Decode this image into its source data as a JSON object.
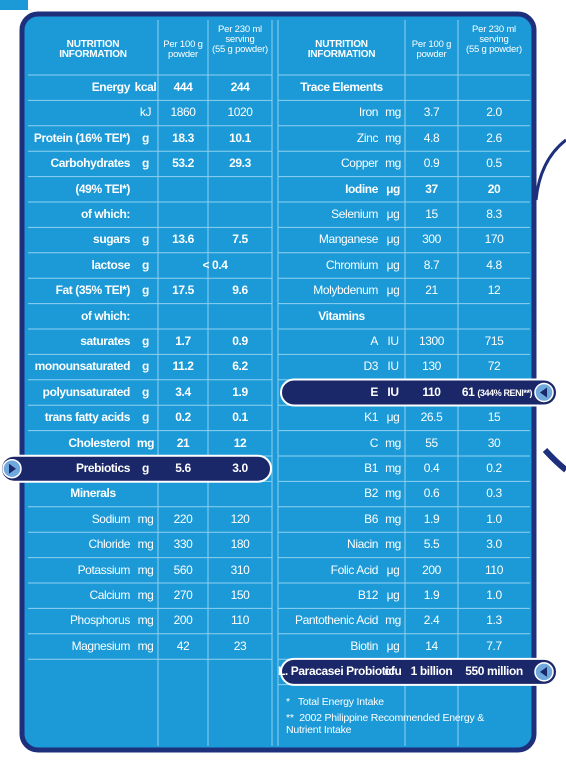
{
  "left": {
    "header": {
      "label": "NUTRITION\nINFORMATION",
      "per100": "Per 100 g\npowder",
      "per230": "Per 230 ml\nserving\n(55 g powder)"
    },
    "rows": [
      {
        "label": "Energy",
        "unit": "kcal",
        "per100": "444",
        "per230": "244",
        "bold": true
      },
      {
        "unit": "kJ",
        "per100": "1860",
        "per230": "1020"
      },
      {
        "label": "Protein (16% TEI*)",
        "unit": "g",
        "per100": "18.3",
        "per230": "10.1",
        "bold": true
      },
      {
        "label": "Carbohydrates",
        "unit": "g",
        "per100": "53.2",
        "per230": "29.3",
        "bold": true
      },
      {
        "label": "(49% TEI*)",
        "bold": true
      },
      {
        "label": "of which:",
        "bold": true
      },
      {
        "label": "sugars",
        "unit": "g",
        "per100": "13.6",
        "per230": "7.5",
        "bold": true
      },
      {
        "label": "lactose",
        "unit": "g",
        "both": "< 0.4",
        "bold": true
      },
      {
        "label": "Fat (35% TEI*)",
        "unit": "g",
        "per100": "17.5",
        "per230": "9.6",
        "bold": true
      },
      {
        "label": "of which:",
        "bold": true
      },
      {
        "label": "saturates",
        "unit": "g",
        "per100": "1.7",
        "per230": "0.9",
        "bold": true
      },
      {
        "label": "monounsaturated",
        "unit": "g",
        "per100": "11.2",
        "per230": "6.2",
        "bold": true
      },
      {
        "label": "polyunsaturated",
        "unit": "g",
        "per100": "3.4",
        "per230": "1.9",
        "bold": true
      },
      {
        "label": "trans fatty acids",
        "unit": "g",
        "per100": "0.2",
        "per230": "0.1",
        "bold": true
      },
      {
        "label": "Cholesterol",
        "unit": "mg",
        "per100": "21",
        "per230": "12",
        "bold": true
      },
      {
        "label": "Prebiotics",
        "unit": "g",
        "per100": "5.6",
        "per230": "3.0",
        "bold": true,
        "highlight": true
      },
      {
        "label": "Minerals",
        "bold": true
      },
      {
        "label": "Sodium",
        "unit": "mg",
        "per100": "220",
        "per230": "120"
      },
      {
        "label": "Chloride",
        "unit": "mg",
        "per100": "330",
        "per230": "180"
      },
      {
        "label": "Potassium",
        "unit": "mg",
        "per100": "560",
        "per230": "310"
      },
      {
        "label": "Calcium",
        "unit": "mg",
        "per100": "270",
        "per230": "150"
      },
      {
        "label": "Phosphorus",
        "unit": "mg",
        "per100": "200",
        "per230": "110"
      },
      {
        "label": "Magnesium",
        "unit": "mg",
        "per100": "42",
        "per230": "23"
      }
    ]
  },
  "right": {
    "header": {
      "label": "NUTRITION\nINFORMATION",
      "per100": "Per 100 g\npowder",
      "per230": "Per 230 ml\nserving\n(55 g powder)"
    },
    "rows": [
      {
        "label": "Trace Elements",
        "bold": true
      },
      {
        "label": "Iron",
        "unit": "mg",
        "per100": "3.7",
        "per230": "2.0"
      },
      {
        "label": "Zinc",
        "unit": "mg",
        "per100": "4.8",
        "per230": "2.6"
      },
      {
        "label": "Copper",
        "unit": "mg",
        "per100": "0.9",
        "per230": "0.5"
      },
      {
        "label": "Iodine",
        "unit": "μg",
        "per100": "37",
        "per230": "20",
        "bold": true
      },
      {
        "label": "Selenium",
        "unit": "μg",
        "per100": "15",
        "per230": "8.3"
      },
      {
        "label": "Manganese",
        "unit": "μg",
        "per100": "300",
        "per230": "170"
      },
      {
        "label": "Chromium",
        "unit": "μg",
        "per100": "8.7",
        "per230": "4.8"
      },
      {
        "label": "Molybdenum",
        "unit": "μg",
        "per100": "21",
        "per230": "12"
      },
      {
        "label": "Vitamins",
        "bold": true
      },
      {
        "label": "A",
        "unit": "IU",
        "per100": "1300",
        "per230": "715"
      },
      {
        "label": "D3",
        "unit": "IU",
        "per100": "130",
        "per230": "72"
      },
      {
        "label": "E",
        "unit": "IU",
        "per100": "110",
        "per230": "61",
        "per230_note": "(344% RENI**)",
        "bold": true,
        "highlight": true
      },
      {
        "label": "K1",
        "unit": "μg",
        "per100": "26.5",
        "per230": "15"
      },
      {
        "label": "C",
        "unit": "mg",
        "per100": "55",
        "per230": "30"
      },
      {
        "label": "B1",
        "unit": "mg",
        "per100": "0.4",
        "per230": "0.2"
      },
      {
        "label": "B2",
        "unit": "mg",
        "per100": "0.6",
        "per230": "0.3"
      },
      {
        "label": "B6",
        "unit": "mg",
        "per100": "1.9",
        "per230": "1.0"
      },
      {
        "label": "Niacin",
        "unit": "mg",
        "per100": "5.5",
        "per230": "3.0"
      },
      {
        "label": "Folic Acid",
        "unit": "μg",
        "per100": "200",
        "per230": "110"
      },
      {
        "label": "B12",
        "unit": "μg",
        "per100": "1.9",
        "per230": "1.0"
      },
      {
        "label": "Pantothenic Acid",
        "unit": "mg",
        "per100": "2.4",
        "per230": "1.3"
      },
      {
        "label": "Biotin",
        "unit": "μg",
        "per100": "14",
        "per230": "7.7"
      },
      {
        "label": "L. Paracasei Probiotic",
        "unit": "cfu",
        "per100": "1 billion",
        "per230": "550 million",
        "bold": true,
        "highlight": true
      }
    ]
  },
  "footnotes": [
    "*   Total Energy Intake",
    "**  2002 Philippine Recommended Energy & Nutrient Intake"
  ]
}
